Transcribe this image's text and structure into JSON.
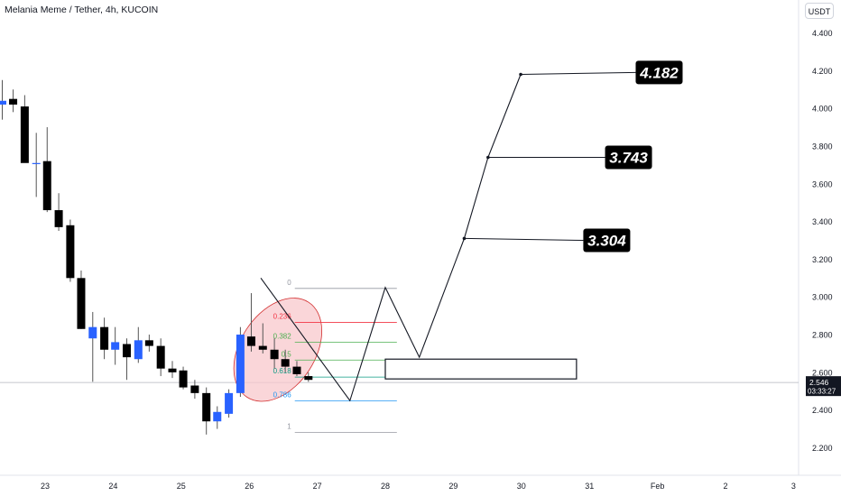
{
  "header": {
    "title": "Melania Meme / Tether, 4h, KUCOIN",
    "currency": "USDT"
  },
  "price_badge": {
    "price": "2.546",
    "countdown": "03:33:27"
  },
  "colors": {
    "up": "#2962ff",
    "down": "#000000",
    "fib_zone_fill": "#f8c8cc",
    "fib_zone_stroke": "#d32f2f"
  },
  "chart_data": {
    "type": "candlestick",
    "ylim": [
      2.1,
      4.45
    ],
    "y_ticks": [
      "2.200",
      "2.400",
      "2.600",
      "2.800",
      "3.000",
      "3.200",
      "3.400",
      "3.600",
      "3.800",
      "4.000",
      "4.200",
      "4.400"
    ],
    "x_ticks": [
      "23",
      "24",
      "25",
      "26",
      "27",
      "28",
      "29",
      "30",
      "31",
      "Feb",
      "2",
      "3"
    ],
    "x_tick_offsets": [
      23,
      24,
      25,
      26,
      27,
      28,
      29,
      30,
      31,
      32,
      33,
      34
    ],
    "current_price": 2.546,
    "candles": [
      {
        "t": 22.37,
        "o": 4.02,
        "h": 4.15,
        "l": 3.94,
        "c": 4.04
      },
      {
        "t": 22.53,
        "o": 4.05,
        "h": 4.1,
        "l": 3.98,
        "c": 4.02
      },
      {
        "t": 22.7,
        "o": 4.01,
        "h": 4.07,
        "l": 3.72,
        "c": 3.71
      },
      {
        "t": 22.87,
        "o": 3.71,
        "h": 3.87,
        "l": 3.53,
        "c": 3.71
      },
      {
        "t": 23.03,
        "o": 3.72,
        "h": 3.9,
        "l": 3.45,
        "c": 3.46
      },
      {
        "t": 23.2,
        "o": 3.46,
        "h": 3.55,
        "l": 3.35,
        "c": 3.37
      },
      {
        "t": 23.37,
        "o": 3.38,
        "h": 3.41,
        "l": 3.08,
        "c": 3.1
      },
      {
        "t": 23.53,
        "o": 3.1,
        "h": 3.14,
        "l": 2.83,
        "c": 2.83
      },
      {
        "t": 23.7,
        "o": 2.78,
        "h": 2.92,
        "l": 2.55,
        "c": 2.84
      },
      {
        "t": 23.87,
        "o": 2.84,
        "h": 2.89,
        "l": 2.67,
        "c": 2.72
      },
      {
        "t": 24.03,
        "o": 2.72,
        "h": 2.84,
        "l": 2.64,
        "c": 2.76
      },
      {
        "t": 24.2,
        "o": 2.75,
        "h": 2.78,
        "l": 2.56,
        "c": 2.68
      },
      {
        "t": 24.37,
        "o": 2.67,
        "h": 2.84,
        "l": 2.65,
        "c": 2.77
      },
      {
        "t": 24.53,
        "o": 2.77,
        "h": 2.8,
        "l": 2.71,
        "c": 2.74
      },
      {
        "t": 24.7,
        "o": 2.74,
        "h": 2.78,
        "l": 2.58,
        "c": 2.62
      },
      {
        "t": 24.87,
        "o": 2.62,
        "h": 2.66,
        "l": 2.57,
        "c": 2.6
      },
      {
        "t": 25.03,
        "o": 2.61,
        "h": 2.63,
        "l": 2.51,
        "c": 2.52
      },
      {
        "t": 25.2,
        "o": 2.53,
        "h": 2.56,
        "l": 2.46,
        "c": 2.49
      },
      {
        "t": 25.37,
        "o": 2.49,
        "h": 2.52,
        "l": 2.27,
        "c": 2.34
      },
      {
        "t": 25.53,
        "o": 2.34,
        "h": 2.42,
        "l": 2.3,
        "c": 2.39
      },
      {
        "t": 25.7,
        "o": 2.38,
        "h": 2.51,
        "l": 2.36,
        "c": 2.49
      },
      {
        "t": 25.87,
        "o": 2.49,
        "h": 2.84,
        "l": 2.47,
        "c": 2.8
      },
      {
        "t": 26.03,
        "o": 2.79,
        "h": 3.02,
        "l": 2.71,
        "c": 2.74
      },
      {
        "t": 26.2,
        "o": 2.74,
        "h": 2.86,
        "l": 2.7,
        "c": 2.72
      },
      {
        "t": 26.37,
        "o": 2.72,
        "h": 2.78,
        "l": 2.62,
        "c": 2.67
      },
      {
        "t": 26.53,
        "o": 2.67,
        "h": 2.72,
        "l": 2.6,
        "c": 2.63
      },
      {
        "t": 26.7,
        "o": 2.63,
        "h": 2.66,
        "l": 2.58,
        "c": 2.59
      },
      {
        "t": 26.87,
        "o": 2.58,
        "h": 2.6,
        "l": 2.55,
        "c": 2.56
      }
    ],
    "fib": {
      "levels": [
        {
          "label": "0",
          "price": 3.045,
          "color": "#9598a1"
        },
        {
          "label": "0.236",
          "price": 2.865,
          "color": "#f23645"
        },
        {
          "label": "0.382",
          "price": 2.76,
          "color": "#4caf50"
        },
        {
          "label": "0.5",
          "price": 2.665,
          "color": "#4caf50"
        },
        {
          "label": "0.618",
          "price": 2.575,
          "color": "#089981"
        },
        {
          "label": "0.786",
          "price": 2.448,
          "color": "#2196f3"
        },
        {
          "label": "1",
          "price": 2.282,
          "color": "#9598a1"
        }
      ],
      "t_start": 26.67,
      "t_end": 28.17
    },
    "zigzag": [
      {
        "t": 26.17,
        "p": 3.1
      },
      {
        "t": 27.48,
        "p": 2.45
      },
      {
        "t": 28.0,
        "p": 3.05
      },
      {
        "t": 28.5,
        "p": 2.68
      },
      {
        "t": 29.16,
        "p": 3.31
      },
      {
        "t": 29.51,
        "p": 3.74
      },
      {
        "t": 29.99,
        "p": 4.18
      }
    ],
    "targets": [
      {
        "label": "4.182",
        "t0": 29.99,
        "p0": 4.18,
        "t1": 31.68,
        "p1": 4.19
      },
      {
        "label": "3.743",
        "t0": 29.51,
        "p0": 3.74,
        "t1": 31.23,
        "p1": 3.74
      },
      {
        "label": "3.304",
        "t0": 29.16,
        "p0": 3.31,
        "t1": 30.91,
        "p1": 3.3
      }
    ],
    "box": {
      "t0": 28.0,
      "t1": 30.81,
      "p_top": 2.67,
      "p_bottom": 2.565
    },
    "ellipse": {
      "t": 26.42,
      "p": 2.72,
      "rx_days": 0.55,
      "ry_price": 0.3
    }
  }
}
